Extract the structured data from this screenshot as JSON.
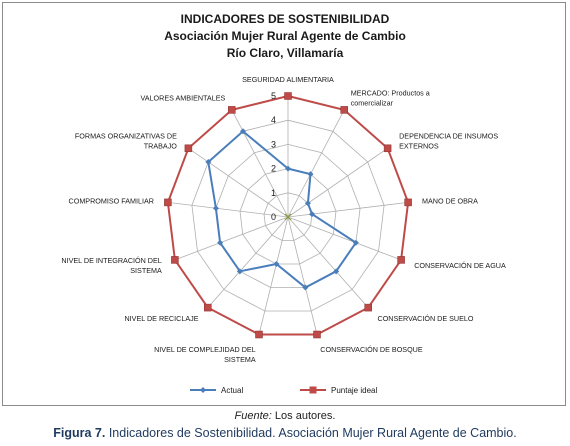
{
  "chart_data": {
    "type": "radar",
    "title_lines": [
      "INDICADORES DE SOSTENIBILIDAD",
      "Asociación Mujer Rural Agente de Cambio",
      "Río Claro, Villamaría"
    ],
    "categories": [
      [
        "SEGURIDAD ALIMENTARIA"
      ],
      [
        "MERCADO: Productos a",
        "comercializar"
      ],
      [
        "DEPENDENCIA DE INSUMOS",
        "EXTERNOS"
      ],
      [
        "MANO DE OBRA"
      ],
      [
        "CONSERVACIÓN DE AGUA"
      ],
      [
        "CONSERVACIÓN DE SUELO"
      ],
      [
        "CONSERVACIÓN DE BOSQUE"
      ],
      [
        "NIVEL DE COMPLEJIDAD DEL",
        "SISTEMA"
      ],
      [
        "NIVEL DE RECICLAJE"
      ],
      [
        "NIVEL DE INTEGRACIÓN DEL",
        "SISTEMA"
      ],
      [
        "COMPROMISO FAMILIAR"
      ],
      [
        "FORMAS ORGANIZATIVAS DE",
        "TRABAJO"
      ],
      [
        "VALORES AMBIENTALES"
      ]
    ],
    "rlim": [
      0,
      5
    ],
    "ticks": [
      "0",
      "1",
      "2",
      "3",
      "4",
      "5"
    ],
    "grid": true,
    "legend_position": "bottom",
    "series": [
      {
        "name": "Actual",
        "color": "#4a7ebb",
        "marker": "diamond",
        "values": [
          2,
          2,
          1,
          1,
          3,
          3,
          3,
          2,
          3,
          3,
          3,
          4,
          4
        ]
      },
      {
        "name": "Puntaje ideal",
        "color": "#be4b48",
        "marker": "square",
        "values": [
          5,
          5,
          5,
          5,
          5,
          5,
          5,
          5,
          5,
          5,
          5,
          5,
          5
        ]
      }
    ],
    "center_marker_color": "#8a9a3b"
  },
  "footer": {
    "source_lead": "Fuente:",
    "source_text": " Los autores.",
    "caption_lead": "Figura 7.",
    "caption_text": " Indicadores de Sostenibilidad. Asociación Mujer Rural Agente de Cambio."
  }
}
